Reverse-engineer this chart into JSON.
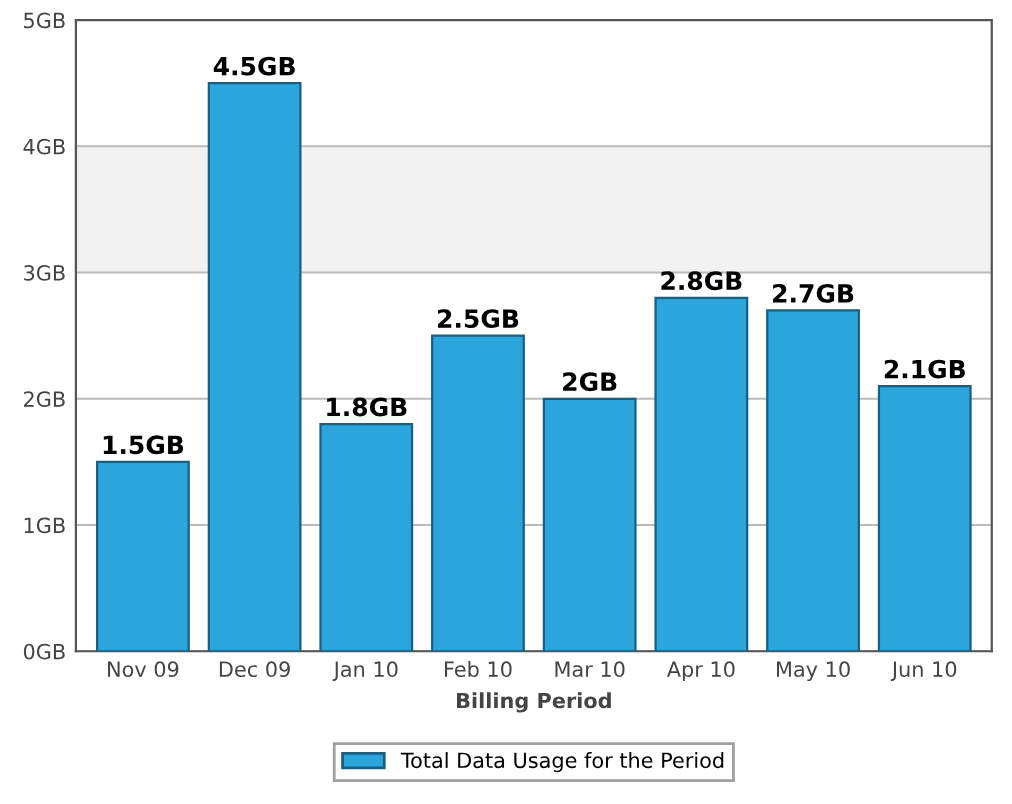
{
  "chart_data": {
    "type": "bar",
    "xlabel": "Billing Period",
    "categories": [
      "Nov 09",
      "Dec 09",
      "Jan 10",
      "Feb 10",
      "Mar 10",
      "Apr 10",
      "May 10",
      "Jun 10"
    ],
    "series": [
      {
        "name": "Total Data Usage for the Period",
        "color": "#2ba6dc",
        "values": [
          1.5,
          4.5,
          1.8,
          2.5,
          2,
          2.8,
          2.7,
          2.1
        ]
      }
    ],
    "value_labels": [
      "1.5GB",
      "4.5GB",
      "1.8GB",
      "2.5GB",
      "2GB",
      "2.8GB",
      "2.7GB",
      "2.1GB"
    ],
    "ylim": [
      0,
      5
    ],
    "yticks": [
      {
        "value": 0,
        "label": "0GB"
      },
      {
        "value": 1,
        "label": "1GB"
      },
      {
        "value": 2,
        "label": "2GB"
      },
      {
        "value": 3,
        "label": "3GB"
      },
      {
        "value": 4,
        "label": "4GB"
      },
      {
        "value": 5,
        "label": "5GB"
      }
    ],
    "bands": [
      {
        "axis": "y",
        "from": 3,
        "to": 4,
        "color": "#f2f2f2"
      }
    ],
    "grid": "y",
    "legend": "bottom"
  }
}
